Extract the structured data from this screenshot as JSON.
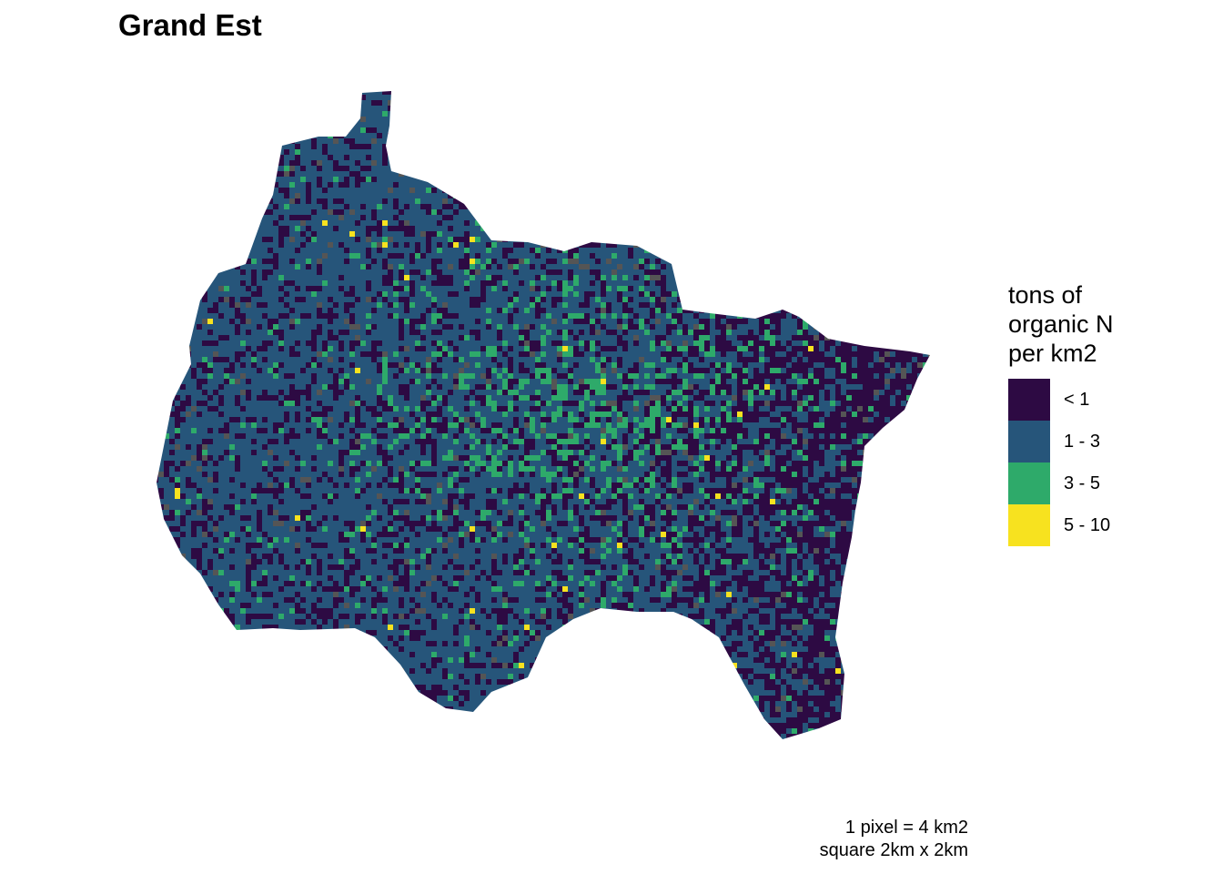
{
  "title": "Grand Est",
  "legend": {
    "title_lines": [
      "tons of",
      "organic N",
      "per km2"
    ],
    "items": [
      {
        "label": "< 1",
        "color": "#2d0a43"
      },
      {
        "label": "1 - 3",
        "color": "#26557a"
      },
      {
        "label": "3 - 5",
        "color": "#2eaa6a"
      },
      {
        "label": "5 - 10",
        "color": "#f7e21f"
      }
    ],
    "no_data_color": "#555555"
  },
  "caption": {
    "line1": "1 pixel = 4 km2",
    "line2": "square 2km x 2km"
  }
}
